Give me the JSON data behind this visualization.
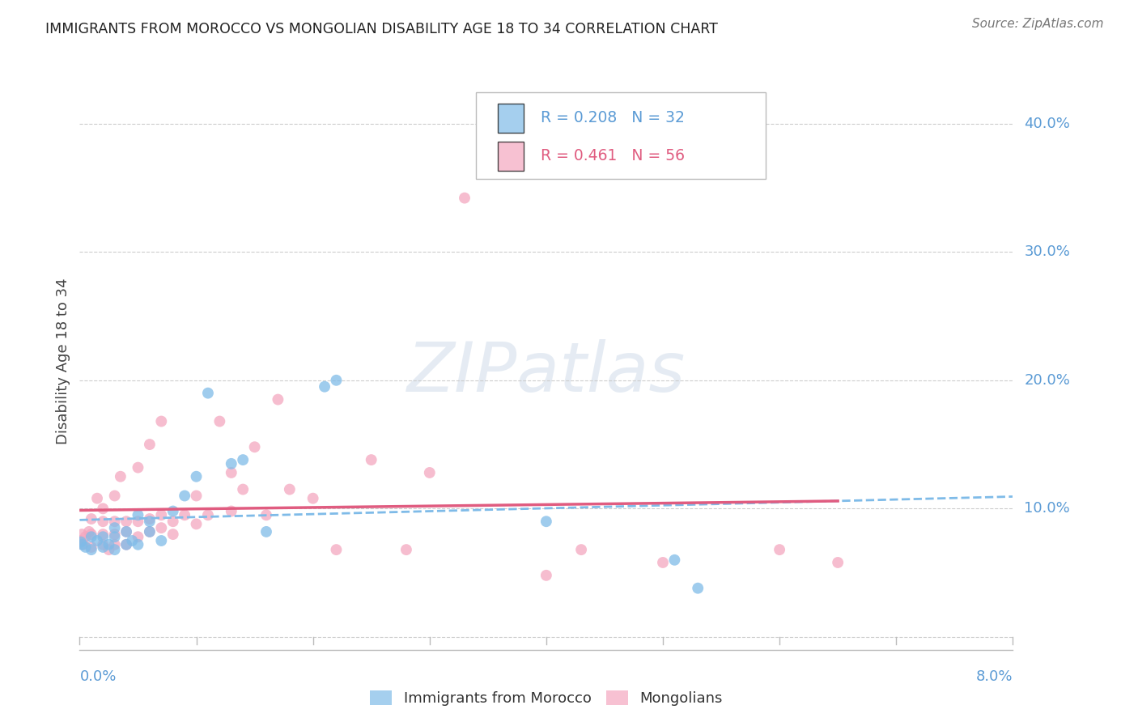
{
  "title": "IMMIGRANTS FROM MOROCCO VS MONGOLIAN DISABILITY AGE 18 TO 34 CORRELATION CHART",
  "source": "Source: ZipAtlas.com",
  "ylabel": "Disability Age 18 to 34",
  "xlim": [
    0.0,
    0.08
  ],
  "ylim": [
    -0.01,
    0.44
  ],
  "morocco_R": "0.208",
  "morocco_N": "32",
  "mongolia_R": "0.461",
  "mongolia_N": "56",
  "morocco_color": "#7fbbe8",
  "mongolia_color": "#f4a7bf",
  "morocco_line_color": "#7fbbe8",
  "mongolia_line_color": "#e05c80",
  "background_color": "#ffffff",
  "grid_color": "#cccccc",
  "morocco_x": [
    0.0001,
    0.0002,
    0.0005,
    0.001,
    0.001,
    0.0015,
    0.002,
    0.002,
    0.0025,
    0.003,
    0.003,
    0.003,
    0.004,
    0.004,
    0.0045,
    0.005,
    0.005,
    0.006,
    0.006,
    0.007,
    0.008,
    0.009,
    0.01,
    0.011,
    0.013,
    0.014,
    0.016,
    0.021,
    0.022,
    0.04,
    0.051,
    0.053
  ],
  "morocco_y": [
    0.074,
    0.072,
    0.07,
    0.068,
    0.078,
    0.075,
    0.07,
    0.078,
    0.072,
    0.068,
    0.078,
    0.085,
    0.072,
    0.082,
    0.075,
    0.072,
    0.095,
    0.082,
    0.09,
    0.075,
    0.098,
    0.11,
    0.125,
    0.19,
    0.135,
    0.138,
    0.082,
    0.195,
    0.2,
    0.09,
    0.06,
    0.038
  ],
  "mongolia_x": [
    0.0001,
    0.0002,
    0.0003,
    0.0005,
    0.0008,
    0.001,
    0.001,
    0.001,
    0.0015,
    0.002,
    0.002,
    0.002,
    0.002,
    0.0025,
    0.003,
    0.003,
    0.003,
    0.003,
    0.0035,
    0.004,
    0.004,
    0.004,
    0.005,
    0.005,
    0.005,
    0.006,
    0.006,
    0.006,
    0.007,
    0.007,
    0.007,
    0.008,
    0.008,
    0.009,
    0.01,
    0.01,
    0.011,
    0.012,
    0.013,
    0.013,
    0.014,
    0.015,
    0.016,
    0.017,
    0.018,
    0.02,
    0.022,
    0.025,
    0.028,
    0.03,
    0.033,
    0.04,
    0.043,
    0.05,
    0.06,
    0.065
  ],
  "mongolia_y": [
    0.075,
    0.08,
    0.072,
    0.078,
    0.082,
    0.07,
    0.08,
    0.092,
    0.108,
    0.072,
    0.08,
    0.09,
    0.1,
    0.068,
    0.072,
    0.08,
    0.09,
    0.11,
    0.125,
    0.072,
    0.082,
    0.09,
    0.078,
    0.09,
    0.132,
    0.082,
    0.092,
    0.15,
    0.085,
    0.095,
    0.168,
    0.08,
    0.09,
    0.095,
    0.088,
    0.11,
    0.095,
    0.168,
    0.098,
    0.128,
    0.115,
    0.148,
    0.095,
    0.185,
    0.115,
    0.108,
    0.068,
    0.138,
    0.068,
    0.128,
    0.342,
    0.048,
    0.068,
    0.058,
    0.068,
    0.058
  ]
}
